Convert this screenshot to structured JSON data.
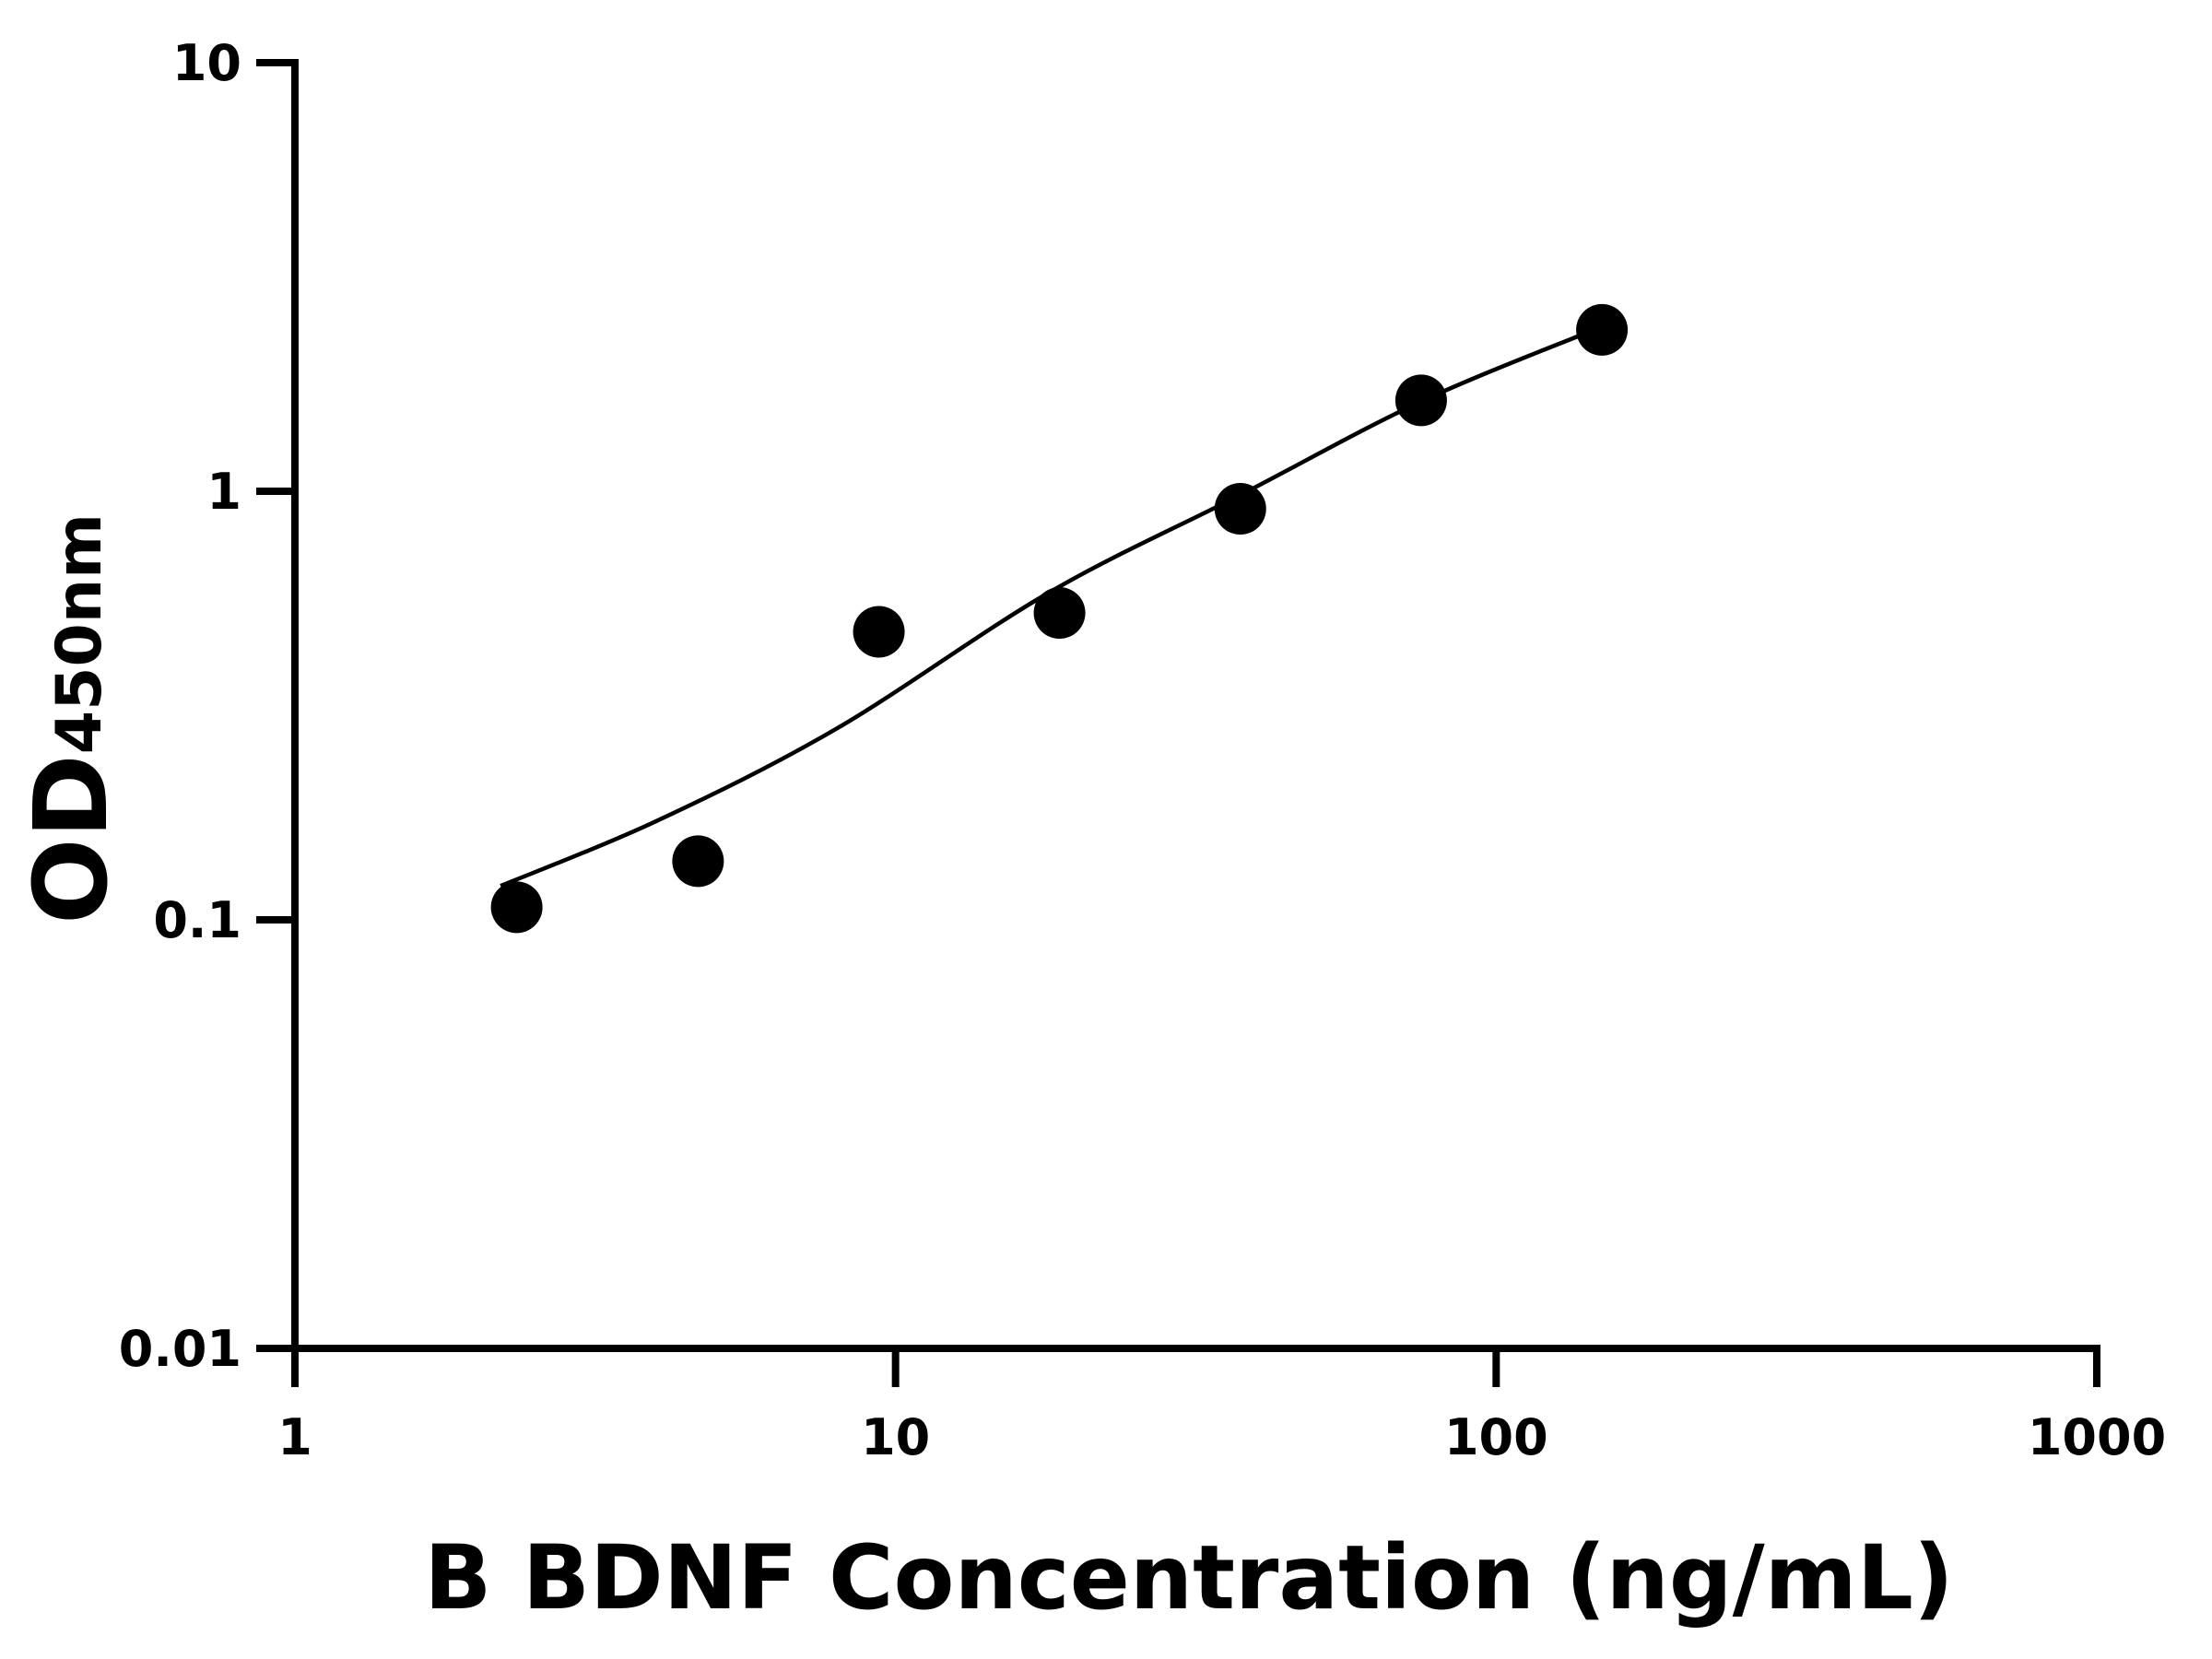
{
  "chart_data": {
    "type": "scatter",
    "xlabel": "B BDNF Concentration (ng/mL)",
    "ylabel": {
      "main": "OD",
      "subscript": "450nm"
    },
    "x_scale": "log",
    "y_scale": "log",
    "xlim": [
      1,
      1000
    ],
    "ylim": [
      0.01,
      10
    ],
    "x_ticks": [
      {
        "value": 1,
        "label": "1"
      },
      {
        "value": 10,
        "label": "10"
      },
      {
        "value": 100,
        "label": "100"
      },
      {
        "value": 1000,
        "label": "1000"
      }
    ],
    "y_ticks": [
      {
        "value": 0.01,
        "label": "0.01"
      },
      {
        "value": 0.1,
        "label": "0.1"
      },
      {
        "value": 1,
        "label": "1"
      },
      {
        "value": 10,
        "label": "10"
      }
    ],
    "grid": false,
    "series": [
      {
        "points": [
          {
            "x": 2.34,
            "y": 0.107
          },
          {
            "x": 4.69,
            "y": 0.137
          },
          {
            "x": 9.38,
            "y": 0.47
          },
          {
            "x": 18.75,
            "y": 0.52
          },
          {
            "x": 37.5,
            "y": 0.91
          },
          {
            "x": 75,
            "y": 1.63
          },
          {
            "x": 150,
            "y": 2.38
          }
        ],
        "fit_curve": [
          {
            "x": 2.2,
            "y": 0.12
          },
          {
            "x": 4.0,
            "y": 0.17
          },
          {
            "x": 8.0,
            "y": 0.28
          },
          {
            "x": 18.0,
            "y": 0.58
          },
          {
            "x": 37.5,
            "y": 0.98
          },
          {
            "x": 75,
            "y": 1.62
          },
          {
            "x": 150,
            "y": 2.42
          }
        ],
        "marker_color": "#000000",
        "line_color": "#000000"
      }
    ]
  }
}
